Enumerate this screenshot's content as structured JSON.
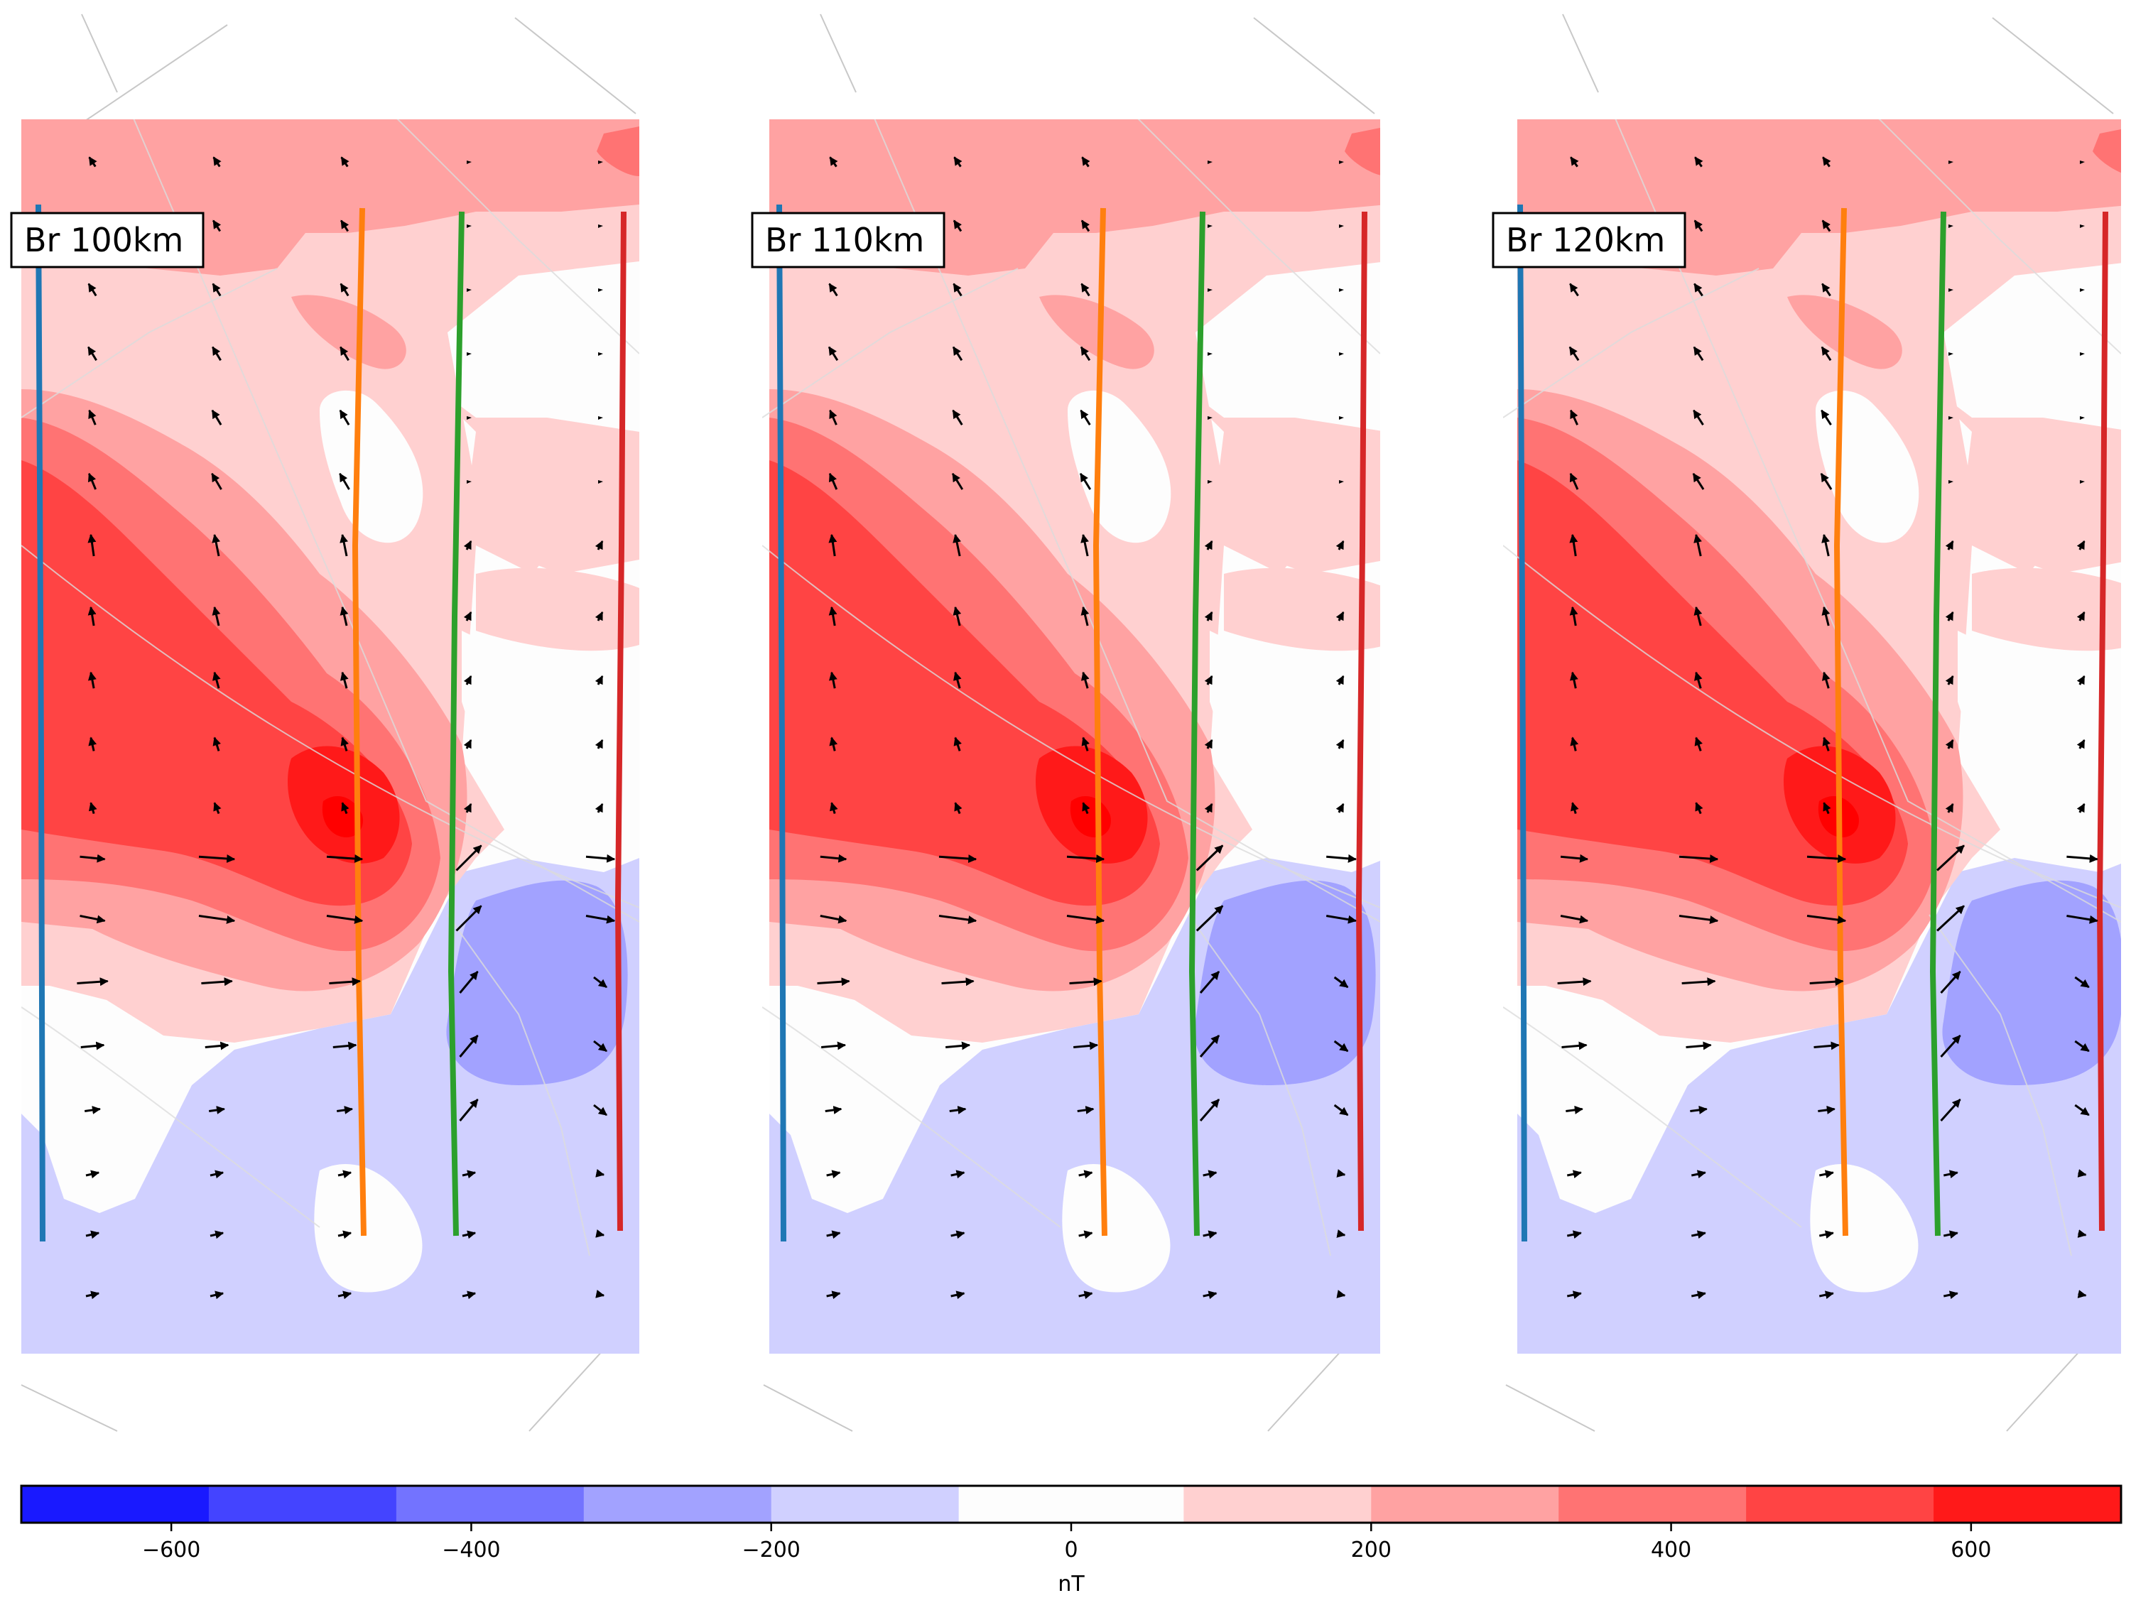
{
  "figure": {
    "panels": [
      {
        "title": "Br 100km"
      },
      {
        "title": "Br 110km"
      },
      {
        "title": "Br 120km"
      }
    ],
    "colorbar": {
      "label": "nT",
      "ticks": [
        "−600",
        "−400",
        "−200",
        "0",
        "200",
        "400",
        "600"
      ]
    }
  },
  "chart_data": {
    "type": "heatmap",
    "quantity": "Br",
    "unit": "nT",
    "panels": [
      {
        "title": "Br 100km",
        "altitude_km": 100
      },
      {
        "title": "Br 110km",
        "altitude_km": 110
      },
      {
        "title": "Br 120km",
        "altitude_km": 120
      }
    ],
    "colorbar": {
      "range": [
        -700,
        700
      ],
      "levels": [
        -700,
        -575,
        -450,
        -325,
        -200,
        -75,
        75,
        200,
        325,
        450,
        575,
        700
      ],
      "colors": [
        "#1919ff",
        "#4444ff",
        "#7373ff",
        "#a2a2ff",
        "#d0d0ff",
        "#fdfdfd",
        "#ffd0d0",
        "#ffa2a2",
        "#ff7373",
        "#ff4444",
        "#ff1919"
      ],
      "tick_values": [
        -600,
        -400,
        -200,
        0,
        200,
        400,
        600
      ],
      "label": "nT"
    },
    "overlay_lines": [
      {
        "color": "#1f77b4"
      },
      {
        "color": "#ff7f0e"
      },
      {
        "color": "#2ca02c"
      },
      {
        "color": "#d62728"
      }
    ],
    "vectors": "black arrows on a regular grid (horizontal current/field direction)"
  }
}
